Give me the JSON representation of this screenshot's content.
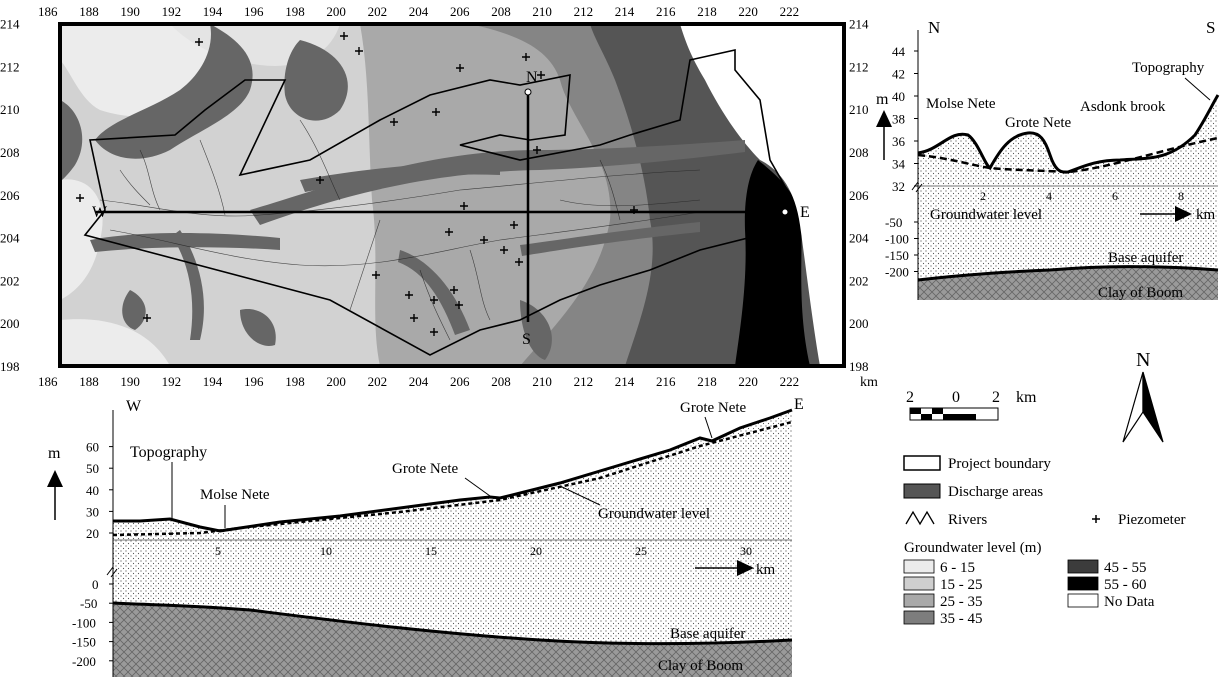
{
  "map": {
    "x_ticks": [
      "186",
      "188",
      "190",
      "192",
      "194",
      "196",
      "198",
      "200",
      "202",
      "204",
      "206",
      "208",
      "210",
      "212",
      "214",
      "216",
      "218",
      "220",
      "222"
    ],
    "y_ticks": [
      "198",
      "200",
      "202",
      "204",
      "206",
      "208",
      "210",
      "212",
      "214"
    ],
    "unit": "km",
    "markers": {
      "north": "N",
      "south": "S",
      "west": "W",
      "east": "E"
    }
  },
  "section_ns": {
    "left_label": "N",
    "right_label": "S",
    "unit": "m",
    "y_ticks_upper": [
      "32",
      "34",
      "36",
      "38",
      "40",
      "42",
      "44"
    ],
    "y_ticks_lower": [
      "-50",
      "-100",
      "-150",
      "-200"
    ],
    "x_ticks": [
      "2",
      "4",
      "6",
      "8"
    ],
    "x_unit": "km",
    "labels": {
      "topography": "Topography",
      "molse_nete": "Molse Nete",
      "grote_nete": "Grote Nete",
      "asdonk_brook": "Asdonk brook",
      "groundwater_level": "Groundwater level",
      "base_aquifer": "Base aquifer",
      "clay_of_boom": "Clay of Boom"
    }
  },
  "section_we": {
    "left_label": "W",
    "right_label": "E",
    "unit": "m",
    "y_ticks_upper": [
      "20",
      "30",
      "40",
      "50",
      "60"
    ],
    "y_ticks_lower": [
      "0",
      "-50",
      "-100",
      "-150",
      "-200"
    ],
    "x_ticks": [
      "5",
      "10",
      "15",
      "20",
      "25",
      "30"
    ],
    "x_unit": "km",
    "labels": {
      "topography": "Topography",
      "molse_nete": "Molse Nete",
      "grote_nete_1": "Grote Nete",
      "grote_nete_2": "Grote Nete",
      "groundwater_level": "Groundwater level",
      "base_aquifer": "Base aquifer",
      "clay_of_boom": "Clay of Boom"
    }
  },
  "scale_bar": {
    "labels": [
      "2",
      "0",
      "2"
    ],
    "unit": "km"
  },
  "north_arrow": {
    "label": "N"
  },
  "legend": {
    "project_boundary": "Project boundary",
    "discharge_areas": "Discharge areas",
    "rivers": "Rivers",
    "piezometer": "Piezometer",
    "groundwater_title": "Groundwater level (m)",
    "classes": [
      {
        "label": "6 - 15",
        "color": "#ececec"
      },
      {
        "label": "15 - 25",
        "color": "#cfcfcf"
      },
      {
        "label": "25 - 35",
        "color": "#a9a9a9"
      },
      {
        "label": "35 - 45",
        "color": "#7d7d7d"
      },
      {
        "label": "45 - 55",
        "color": "#3c3c3c"
      },
      {
        "label": "55 - 60",
        "color": "#000000"
      },
      {
        "label": "No Data",
        "color": "#ffffff"
      }
    ]
  }
}
